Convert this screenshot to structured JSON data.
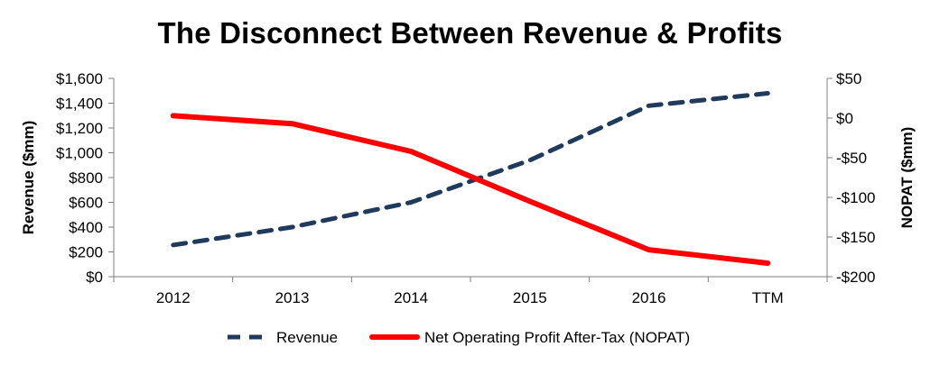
{
  "chart_data": {
    "type": "line",
    "title": "The Disconnect Between Revenue & Profits",
    "categories": [
      "2012",
      "2013",
      "2014",
      "2015",
      "2016",
      "TTM"
    ],
    "y_left": {
      "label": "Revenue ($mm)",
      "ylim": [
        0,
        1600
      ],
      "ticks": [
        0,
        200,
        400,
        600,
        800,
        1000,
        1200,
        1400,
        1600
      ],
      "tick_labels": [
        "$0",
        "$200",
        "$400",
        "$600",
        "$800",
        "$1,000",
        "$1,200",
        "$1,400",
        "$1,600"
      ]
    },
    "y_right": {
      "label": "NOPAT ($mm)",
      "ylim": [
        -200,
        50
      ],
      "ticks": [
        50,
        0,
        -50,
        -100,
        -150,
        -200
      ],
      "tick_labels": [
        "$50",
        "$0",
        "-$50",
        "-$100",
        "-$150",
        "-$200"
      ]
    },
    "series": [
      {
        "name": "Revenue",
        "axis": "left",
        "color": "#1f3a5c",
        "style": "dashed",
        "values": [
          255,
          400,
          600,
          940,
          1380,
          1480
        ]
      },
      {
        "name": "Net Operating Profit After-Tax (NOPAT)",
        "axis": "right",
        "color": "#ff0000",
        "style": "solid",
        "values": [
          3,
          -7,
          -42,
          -105,
          -166,
          -183
        ]
      }
    ],
    "legend_position": "bottom-center",
    "grid": false
  }
}
